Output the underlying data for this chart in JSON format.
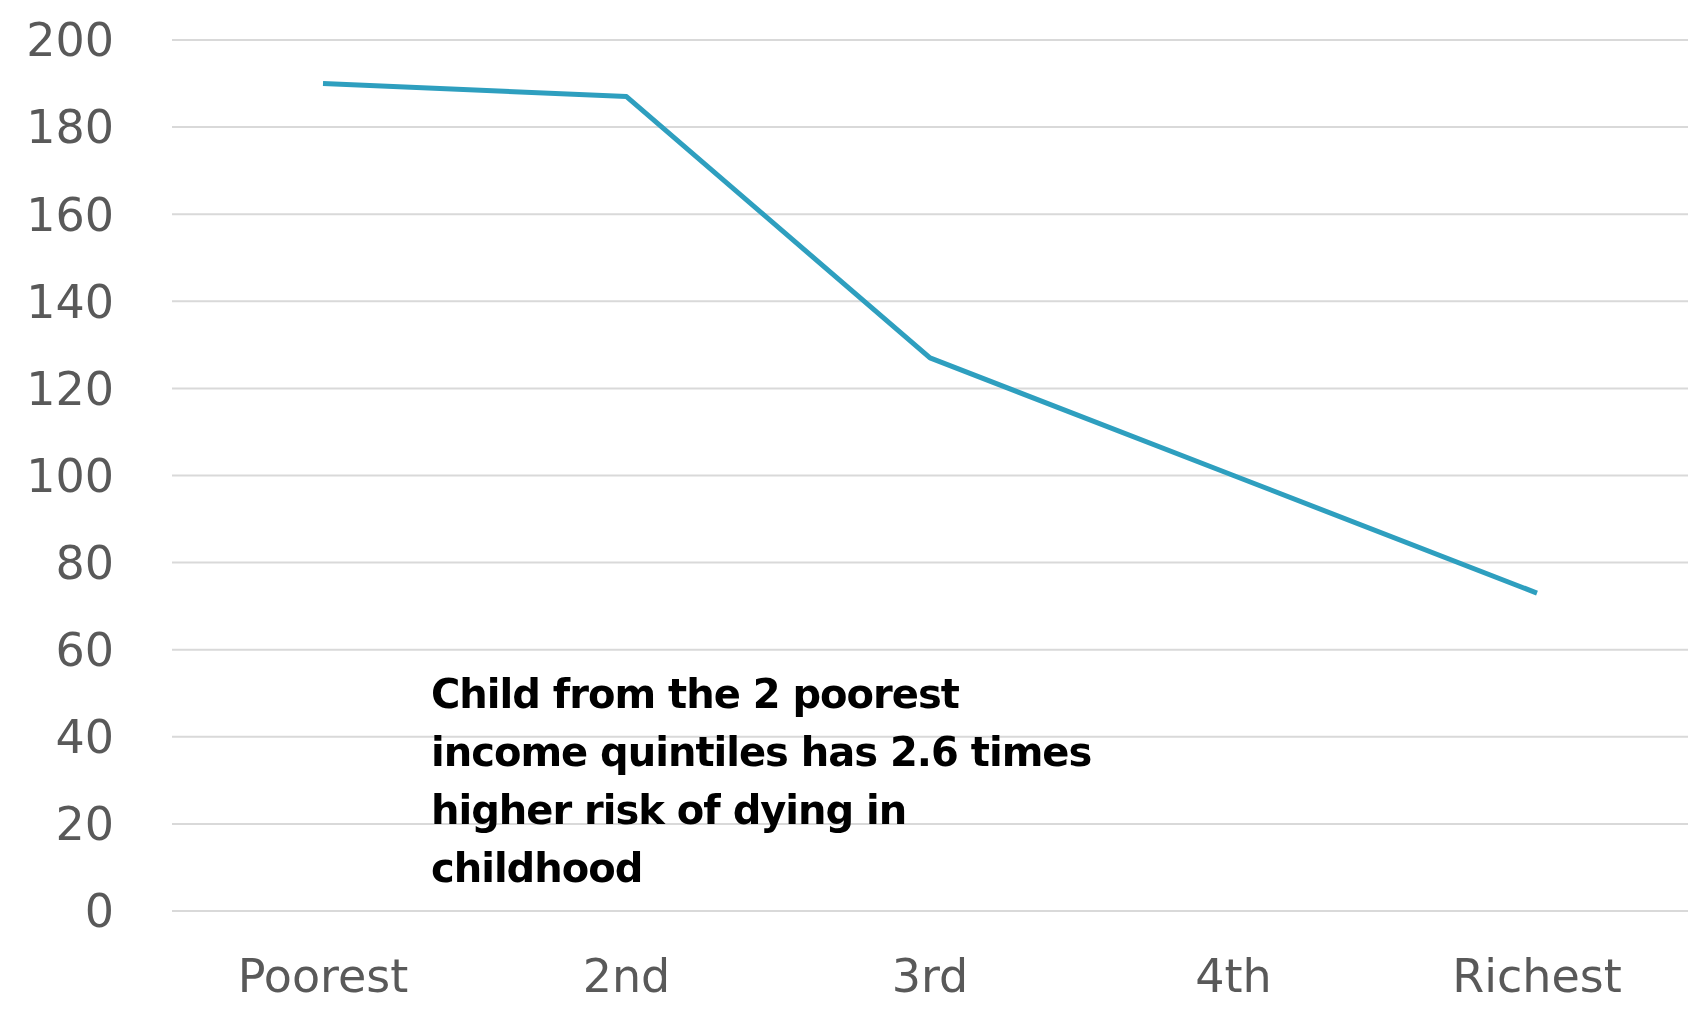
{
  "chart_data": {
    "type": "line",
    "categories": [
      "Poorest",
      "2nd",
      "3rd",
      "4th",
      "Richest"
    ],
    "series": [
      {
        "color": "#2e9fbf",
        "values": [
          190,
          187,
          127,
          100,
          73
        ]
      }
    ],
    "ylim": [
      0,
      200
    ],
    "yticks": [
      0,
      20,
      40,
      60,
      80,
      100,
      120,
      140,
      160,
      180,
      200
    ],
    "grid": "y",
    "marker": "none",
    "annotations": [
      "Child from the 2 poorest income quintiles has 2.6 times higher risk of dying in childhood"
    ]
  }
}
